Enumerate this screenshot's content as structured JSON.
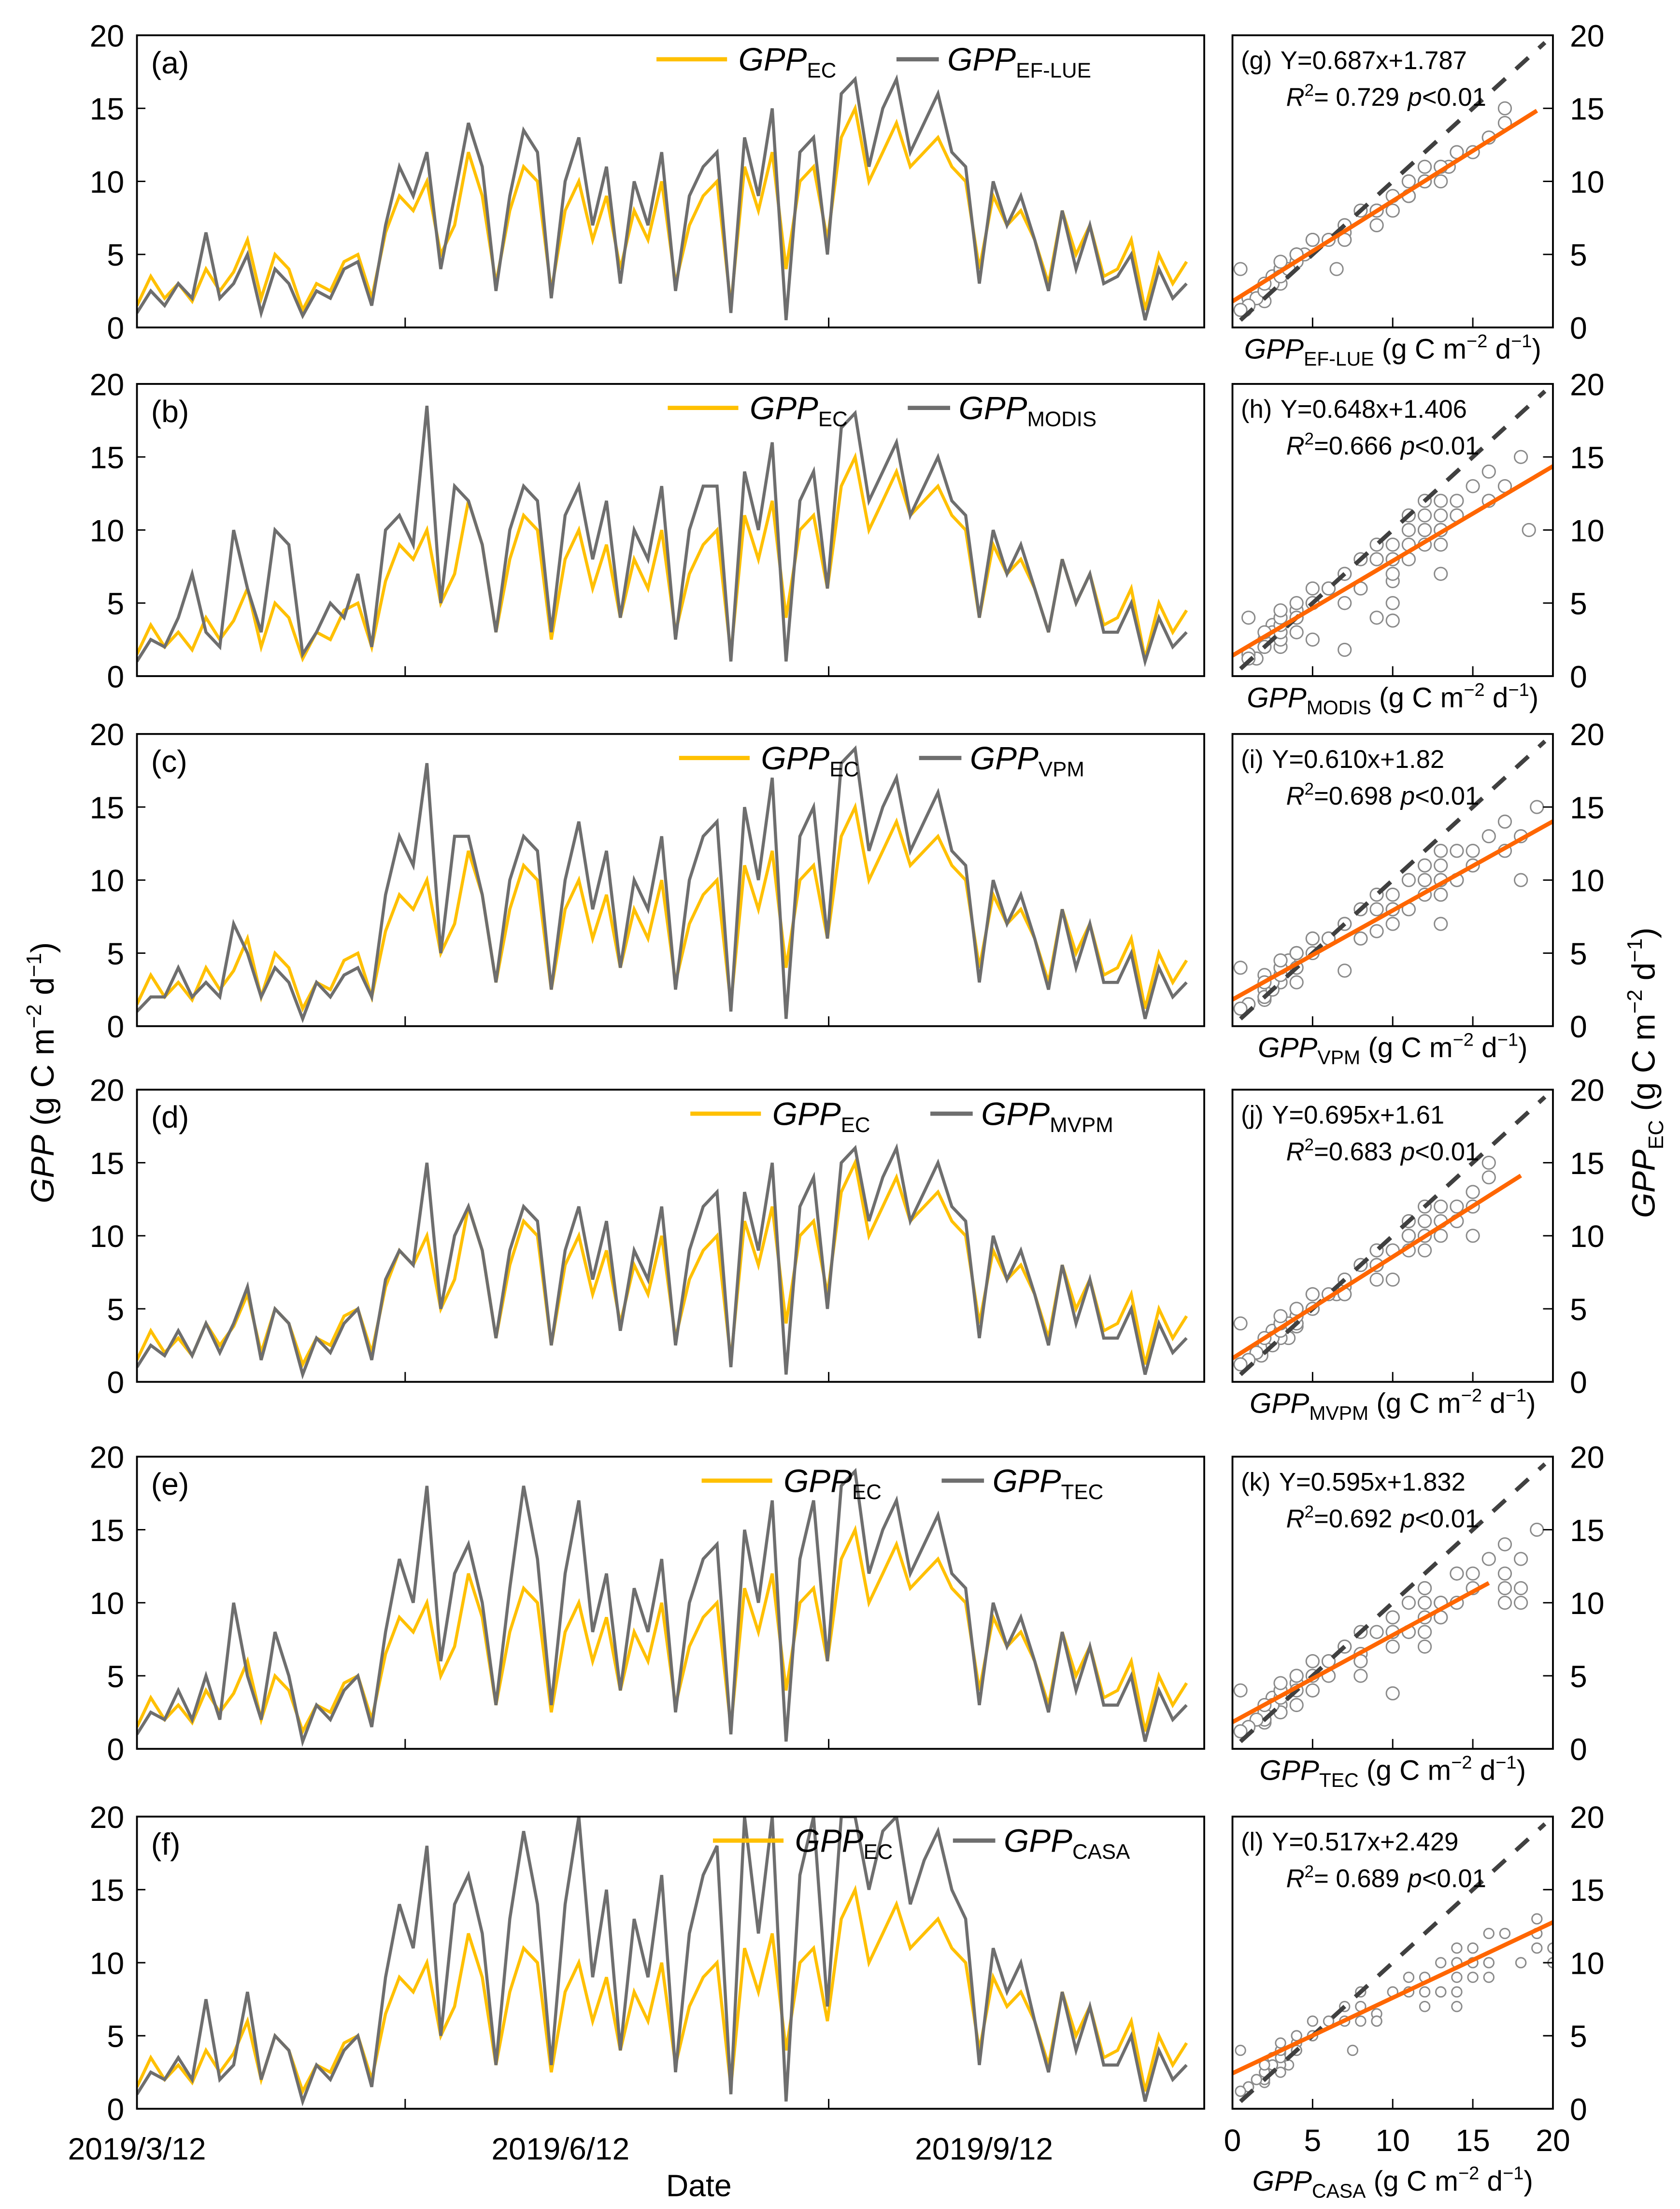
{
  "colors": {
    "ec": "#FFC000",
    "model": "#6E6E6E",
    "regression": "#FF6600",
    "one_to_one": "#404040",
    "scatter": "#8A8A8A",
    "right_ticks_dark": "#330000"
  },
  "axis_labels": {
    "left_y": {
      "main": "GPP",
      "unit": " (g C m",
      "exp1": "−2",
      "mid": " d",
      "exp2": "−1",
      "close": ")"
    },
    "right_y": {
      "main": "GPP",
      "sub": "EC",
      "unit": " (g C m",
      "exp1": "−2",
      "mid": " d",
      "exp2": "−1",
      "close": ")"
    },
    "date": "Date",
    "scatter_unit": {
      "unit": " (g C m",
      "exp1": "−2",
      "mid": " d",
      "exp2": "−1",
      "close": ")"
    }
  },
  "chart_data": {
    "type": "line",
    "time_axis": {
      "start": "2019/3/12",
      "step_days": 3,
      "tick_labels": [
        "2019/3/12",
        "2019/6/12",
        "2019/9/12"
      ],
      "tick_days": [
        0,
        92,
        184
      ]
    },
    "ylim": [
      0,
      20
    ],
    "yticks": [
      "0",
      "5",
      "10",
      "15",
      "20"
    ],
    "scatter_xticks": [
      "0",
      "5",
      "10",
      "15",
      "20"
    ],
    "legend_main": "GPP",
    "ec_sub": "EC",
    "ec_series": [
      1.5,
      3.5,
      2,
      3,
      1.8,
      4,
      2.5,
      3.8,
      6,
      2,
      5,
      4,
      1.2,
      3,
      2.5,
      4.5,
      5,
      2,
      6.5,
      9,
      8,
      10,
      5,
      7,
      12,
      9,
      3,
      8,
      11,
      10,
      2.5,
      8,
      10,
      6,
      9,
      4,
      8,
      6,
      10,
      3,
      7,
      9,
      10,
      1.5,
      11,
      8,
      12,
      4,
      10,
      11,
      6,
      13,
      15,
      10,
      12,
      14,
      11,
      12,
      13,
      11,
      10,
      4,
      9,
      7,
      8,
      6,
      3,
      8,
      5,
      7,
      3.5,
      4,
      6,
      1.2,
      5,
      3,
      4.5
    ],
    "panels": [
      {
        "ts_label": "(a)",
        "sc_label": "(g)",
        "model": "EF-LUE",
        "equation": "Y=0.687x+1.787",
        "r2": "= 0.729",
        "p": "<0.01",
        "slope": 0.687,
        "intercept": 1.787,
        "reg_xrange": [
          0,
          19
        ],
        "values": [
          1,
          2.5,
          1.5,
          3,
          2,
          6.5,
          2,
          3,
          5,
          1,
          4,
          3,
          0.8,
          2.5,
          2,
          4,
          4.5,
          1.5,
          7,
          11,
          9,
          12,
          4,
          9,
          14,
          11,
          2.5,
          9,
          13.5,
          12,
          2,
          10,
          13,
          7,
          11,
          3,
          10,
          7,
          12,
          2.5,
          9,
          11,
          12,
          1,
          13,
          9,
          15,
          0.5,
          12,
          13,
          5,
          16,
          17,
          11,
          15,
          17,
          12,
          14,
          16,
          12,
          11,
          3,
          10,
          7,
          9,
          6,
          2.5,
          8,
          4,
          7,
          3,
          3.5,
          5,
          0.5,
          4,
          2,
          3
        ]
      },
      {
        "ts_label": "(b)",
        "sc_label": "(h)",
        "model": "MODIS",
        "equation": "Y=0.648x+1.406",
        "r2": "=0.666",
        "p": "<0.01",
        "slope": 0.648,
        "intercept": 1.406,
        "reg_xrange": [
          0,
          20
        ],
        "values": [
          1,
          2.5,
          2,
          4,
          7,
          3,
          2,
          10,
          6,
          3,
          10,
          9,
          1.5,
          3,
          5,
          4,
          7,
          2,
          10,
          11,
          9,
          18.5,
          5,
          13,
          12,
          9,
          3,
          10,
          13,
          12,
          3,
          11,
          13,
          8,
          12,
          4,
          10,
          8,
          13,
          2.5,
          10,
          13,
          13,
          1,
          14,
          10,
          16,
          1,
          12,
          14,
          6,
          17,
          18,
          12,
          14,
          16,
          11,
          13,
          15,
          12,
          11,
          4,
          10,
          7,
          9,
          6,
          3,
          8,
          5,
          7,
          3,
          3,
          5,
          1,
          4,
          2,
          3
        ]
      },
      {
        "ts_label": "(c)",
        "sc_label": "(i)",
        "model": "VPM",
        "equation": "Y=0.610x+1.82",
        "r2": "=0.698",
        "p": "<0.01",
        "slope": 0.61,
        "intercept": 1.82,
        "reg_xrange": [
          0,
          20
        ],
        "values": [
          1,
          2,
          2,
          4,
          2,
          3,
          2,
          7,
          5,
          2,
          4,
          3,
          0.5,
          3,
          2,
          3.5,
          4,
          2,
          9,
          13,
          11,
          18,
          5,
          13,
          13,
          9,
          3,
          10,
          13,
          12,
          2.5,
          10,
          14,
          8,
          12,
          4,
          10,
          8,
          13,
          2.5,
          10,
          13,
          14,
          1,
          15,
          10,
          17,
          0.5,
          13,
          15,
          6,
          18,
          19,
          12,
          15,
          17,
          12,
          14,
          16,
          12,
          11,
          3,
          10,
          7,
          9,
          6,
          2.5,
          8,
          4,
          7,
          3,
          3,
          5,
          0.5,
          4,
          2,
          3
        ]
      },
      {
        "ts_label": "(d)",
        "sc_label": "(j)",
        "model": "MVPM",
        "equation": "Y=0.695x+1.61",
        "r2": "=0.683",
        "p": "<0.01",
        "slope": 0.695,
        "intercept": 1.61,
        "reg_xrange": [
          0,
          18
        ],
        "values": [
          1,
          2.5,
          1.8,
          3.5,
          1.8,
          4,
          2,
          4,
          6.5,
          1.5,
          5,
          4,
          0.5,
          3,
          2,
          4,
          5,
          1.5,
          7,
          9,
          8,
          15,
          5,
          10,
          12,
          9,
          3,
          9,
          12,
          11,
          2.5,
          9,
          12,
          7,
          11,
          3.5,
          9,
          7,
          12,
          2.5,
          9,
          12,
          13,
          1,
          13,
          9,
          15,
          0.5,
          12,
          14,
          5,
          15,
          16,
          11,
          14,
          16,
          11,
          13,
          15,
          12,
          11,
          3,
          10,
          7,
          9,
          6,
          2.5,
          8,
          4,
          7,
          3,
          3,
          5,
          0.5,
          4,
          2,
          3
        ]
      },
      {
        "ts_label": "(e)",
        "sc_label": "(k)",
        "model": "TEC",
        "equation": "Y=0.595x+1.832",
        "r2": "=0.692",
        "p": "<0.01",
        "slope": 0.595,
        "intercept": 1.832,
        "reg_xrange": [
          0,
          16
        ],
        "values": [
          1,
          2.5,
          2,
          4,
          2,
          5,
          2,
          10,
          5,
          2,
          8,
          5,
          0.5,
          3,
          2,
          4,
          5,
          1.5,
          8,
          13,
          10,
          18,
          6,
          12,
          14,
          10,
          3,
          11,
          18,
          13,
          3,
          12,
          17,
          8,
          12,
          4,
          11,
          8,
          13,
          2.5,
          10,
          13,
          14,
          1,
          15,
          10,
          17,
          0.5,
          13,
          17,
          6,
          18,
          19,
          12,
          15,
          17,
          12,
          14,
          16,
          12,
          11,
          3,
          10,
          7,
          9,
          6,
          2.5,
          8,
          4,
          7,
          3,
          3,
          5,
          0.5,
          4,
          2,
          3
        ]
      },
      {
        "ts_label": "(f)",
        "sc_label": "(l)",
        "model": "CASA",
        "equation": "Y=0.517x+2.429",
        "r2": "= 0.689",
        "p": "<0.01",
        "slope": 0.517,
        "intercept": 2.429,
        "reg_xrange": [
          0,
          20
        ],
        "values": [
          1,
          2.5,
          2,
          3.5,
          2,
          7.5,
          2,
          3,
          8,
          2,
          5,
          4,
          0.5,
          3,
          2,
          4,
          5,
          1.5,
          9,
          14,
          11,
          18,
          5,
          14,
          16,
          12,
          3,
          13,
          19,
          14,
          3,
          14,
          20,
          9,
          15,
          4,
          13,
          9,
          16,
          2.5,
          12,
          16,
          18,
          1,
          20,
          12,
          22,
          0.5,
          16,
          20,
          7,
          22,
          24,
          15,
          19,
          21,
          14,
          17,
          19,
          15,
          13,
          3,
          11,
          8,
          10,
          6,
          2.5,
          8,
          4,
          7,
          3,
          3,
          5,
          0.5,
          4,
          2,
          3
        ]
      }
    ]
  }
}
